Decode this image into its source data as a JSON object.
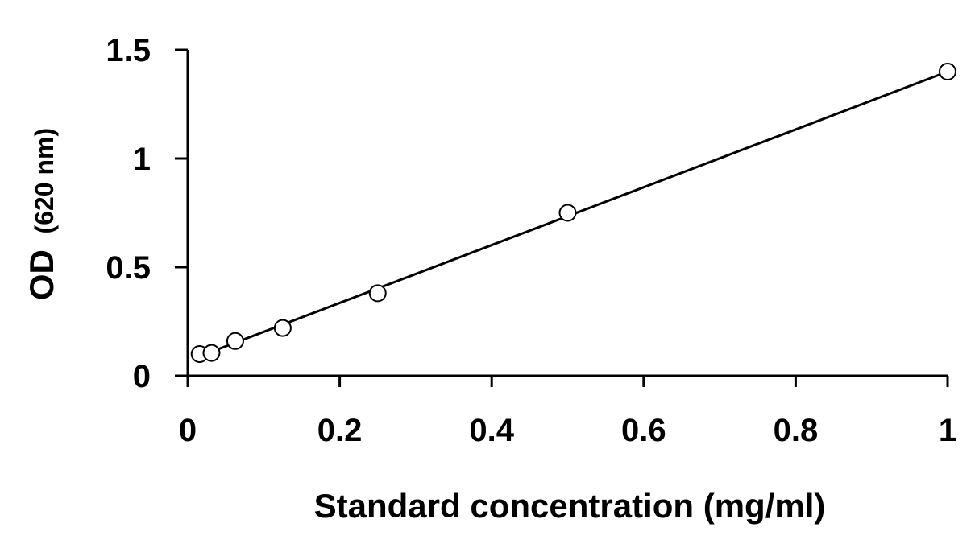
{
  "chart_data": {
    "type": "scatter",
    "title": "",
    "xlabel": "Standard concentration (mg/ml)",
    "ylabel_main": "OD",
    "ylabel_unit": "(620 nm)",
    "xlim": [
      0,
      1
    ],
    "ylim": [
      0,
      1.5
    ],
    "x_ticks": [
      0,
      0.2,
      0.4,
      0.6,
      0.8,
      1
    ],
    "x_tick_labels": [
      "0",
      "0.2",
      "0.4",
      "0.6",
      "0.8",
      "1"
    ],
    "y_ticks": [
      0,
      0.5,
      1,
      1.5
    ],
    "y_tick_labels": [
      "0",
      "0.5",
      "1",
      "1.5"
    ],
    "grid": false,
    "legend": "none",
    "marker": "open-circle",
    "colors": {
      "axis": "#000000",
      "marker_stroke": "#000000",
      "trendline": "#000000"
    },
    "series": [
      {
        "points": [
          {
            "x": 0.0156,
            "y": 0.1
          },
          {
            "x": 0.03125,
            "y": 0.105
          },
          {
            "x": 0.0625,
            "y": 0.16
          },
          {
            "x": 0.125,
            "y": 0.22
          },
          {
            "x": 0.25,
            "y": 0.38
          },
          {
            "x": 0.5,
            "y": 0.75
          },
          {
            "x": 1.0,
            "y": 1.4
          }
        ]
      }
    ],
    "trendline": {
      "type": "linear",
      "from": {
        "x": 0.0156,
        "y": 0.09
      },
      "to": {
        "x": 1.0,
        "y": 1.4
      }
    }
  }
}
